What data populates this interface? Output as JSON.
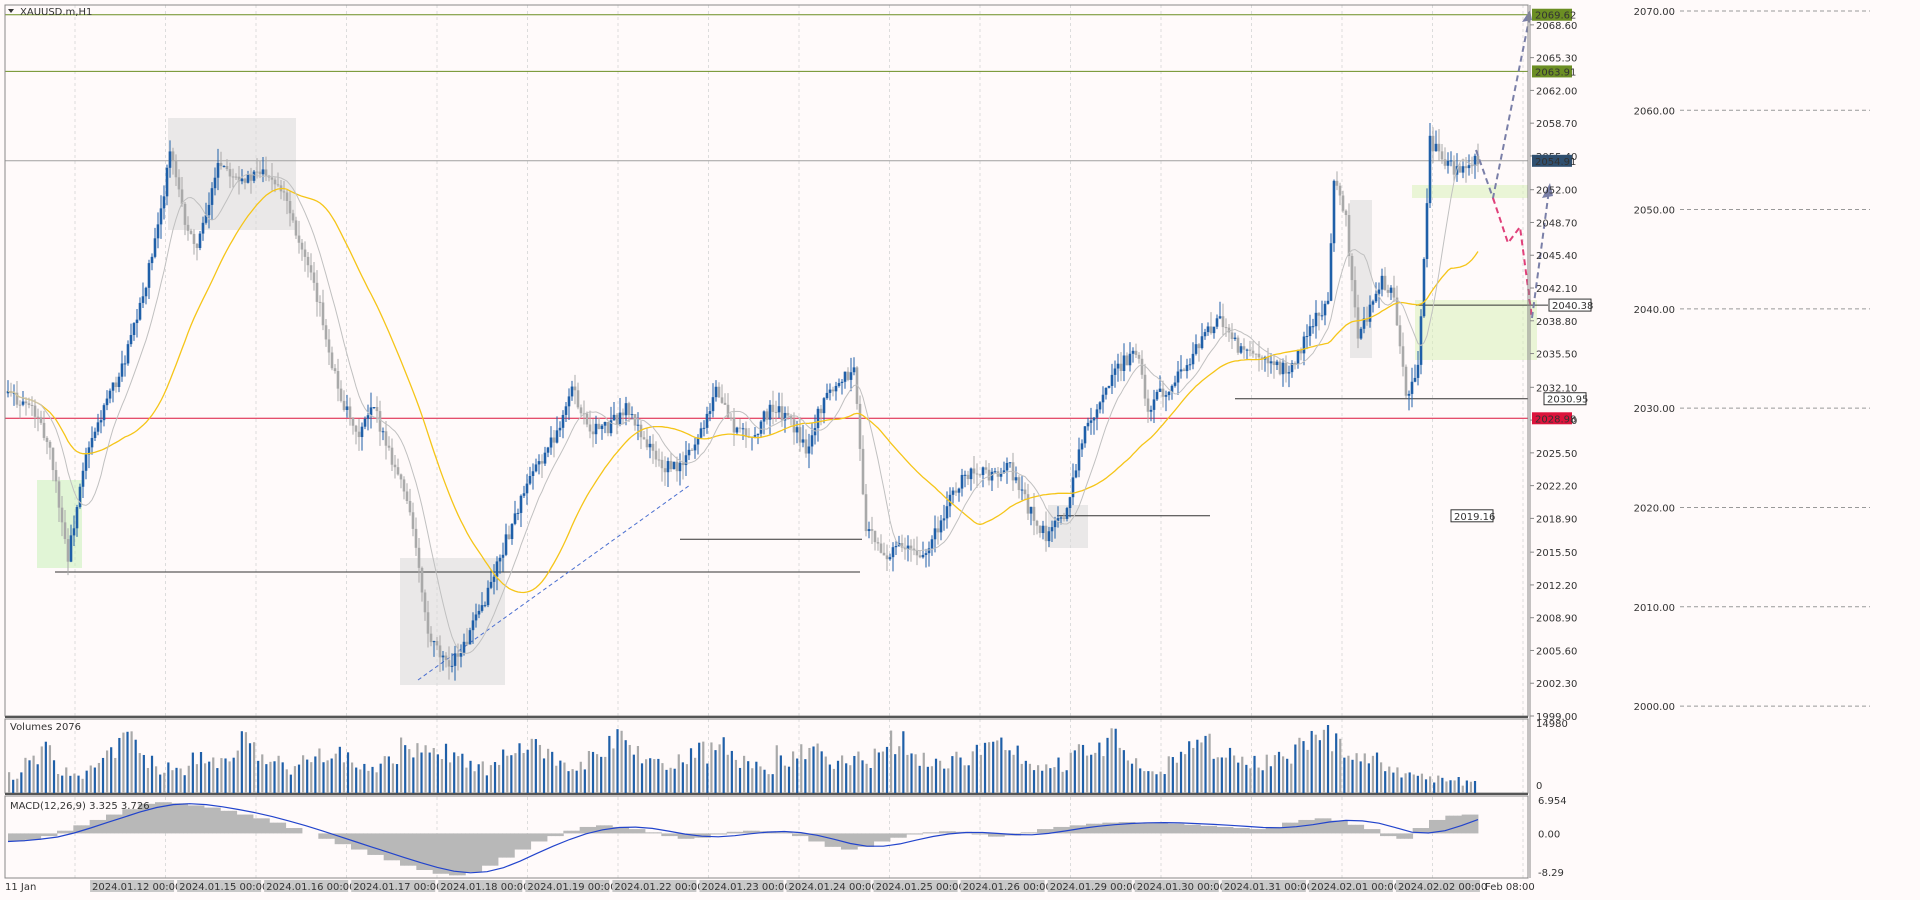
{
  "symbol_label": "XAUUSD.m,H1",
  "volume_label": "Volumes 2076",
  "macd_label": "MACD(12,26,9) 3.325 3.726",
  "colors": {
    "background": "#fffafa",
    "bull_candle": "#1f5fa8",
    "bear_candle": "#a9a9a9",
    "ma_slow": "#f5c518",
    "ma_fast": "#c0c0c0",
    "resistance_line": "#6b8e23",
    "support_line": "#dc143c",
    "projection_up": "#7a7fa8",
    "projection_down": "#e0407a",
    "macd_signal": "#2244cc"
  },
  "chart_data": {
    "type": "candlestick",
    "price_axis_ticks": [
      "2068.60",
      "2065.30",
      "2062.00",
      "2058.70",
      "2055.40",
      "2052.00",
      "2048.70",
      "2045.40",
      "2042.10",
      "2038.80",
      "2035.50",
      "2032.10",
      "2028.80",
      "2025.50",
      "2022.20",
      "2018.90",
      "2015.50",
      "2012.20",
      "2008.90",
      "2005.60",
      "2002.30",
      "1999.00"
    ],
    "ylim": [
      1999.0,
      2070.6
    ],
    "round_levels": [
      "2070.00",
      "2060.00",
      "2050.00",
      "2040.00",
      "2030.00",
      "2020.00",
      "2010.00",
      "2000.00"
    ],
    "level_tags": [
      {
        "label": "2069.62",
        "price": 2069.62,
        "color": "#6b8e23"
      },
      {
        "label": "2063.91",
        "price": 2063.91,
        "color": "#6b8e23"
      },
      {
        "label": "2054.91",
        "price": 2054.91,
        "color": "#2f4f6f"
      },
      {
        "label": "2028.98",
        "price": 2028.98,
        "color": "#dc143c"
      }
    ],
    "annotations": [
      {
        "label": "2040.38",
        "price": 2040.38
      },
      {
        "label": "2030.95",
        "price": 2030.95
      },
      {
        "label": "2019.16",
        "price": 2019.16
      }
    ],
    "time_labels": [
      "11 Jan",
      "2024.01.12 00:00",
      "2024.01.15 00:00",
      "2024.01.16 00:00",
      "2024.01.17 00:00",
      "2024.01.18 00:00",
      "2024.01.19 00:00",
      "2024.01.22 00:00",
      "2024.01.23 00:00",
      "2024.01.24 00:00",
      "2024.01.25 00:00",
      "2024.01.26 00:00",
      "2024.01.29 00:00",
      "2024.01.30 00:00",
      "2024.01.31 00:00",
      "2024.02.01 00:00",
      "2024.02.02 00:00",
      "Feb 08:00"
    ],
    "volume_axis": [
      "14980",
      "0"
    ],
    "macd_axis": [
      "6.954",
      "0.00",
      "-8.29"
    ],
    "price_path": [
      [
        0,
        2031.5
      ],
      [
        8,
        2030
      ],
      [
        14,
        2026
      ],
      [
        20,
        2015
      ],
      [
        26,
        2025
      ],
      [
        32,
        2030
      ],
      [
        38,
        2034
      ],
      [
        44,
        2040
      ],
      [
        50,
        2048
      ],
      [
        54,
        2056
      ],
      [
        58,
        2050
      ],
      [
        62,
        2046
      ],
      [
        66,
        2049
      ],
      [
        70,
        2055
      ],
      [
        74,
        2054
      ],
      [
        80,
        2053
      ],
      [
        86,
        2054
      ],
      [
        92,
        2052
      ],
      [
        98,
        2046
      ],
      [
        104,
        2040
      ],
      [
        110,
        2032
      ],
      [
        116,
        2027
      ],
      [
        122,
        2030
      ],
      [
        128,
        2025
      ],
      [
        134,
        2020
      ],
      [
        140,
        2007
      ],
      [
        146,
        2004
      ],
      [
        152,
        2006
      ],
      [
        158,
        2010
      ],
      [
        164,
        2015
      ],
      [
        170,
        2020
      ],
      [
        176,
        2024
      ],
      [
        182,
        2027
      ],
      [
        188,
        2032
      ],
      [
        194,
        2028
      ],
      [
        200,
        2028
      ],
      [
        206,
        2030
      ],
      [
        212,
        2027
      ],
      [
        218,
        2024
      ],
      [
        224,
        2024
      ],
      [
        230,
        2027
      ],
      [
        236,
        2032
      ],
      [
        242,
        2028
      ],
      [
        248,
        2027
      ],
      [
        254,
        2030
      ],
      [
        260,
        2029
      ],
      [
        266,
        2026
      ],
      [
        272,
        2031
      ],
      [
        278,
        2033
      ],
      [
        282,
        2034
      ],
      [
        286,
        2018
      ],
      [
        292,
        2015
      ],
      [
        298,
        2016
      ],
      [
        304,
        2015
      ],
      [
        310,
        2018
      ],
      [
        316,
        2022
      ],
      [
        322,
        2024
      ],
      [
        328,
        2023
      ],
      [
        334,
        2024
      ],
      [
        340,
        2020
      ],
      [
        346,
        2017
      ],
      [
        352,
        2019
      ],
      [
        358,
        2027
      ],
      [
        364,
        2031
      ],
      [
        370,
        2034
      ],
      [
        376,
        2036
      ],
      [
        380,
        2030
      ],
      [
        386,
        2032
      ],
      [
        392,
        2034
      ],
      [
        398,
        2037
      ],
      [
        404,
        2039
      ],
      [
        410,
        2036
      ],
      [
        416,
        2035
      ],
      [
        422,
        2034
      ],
      [
        428,
        2034
      ],
      [
        434,
        2038
      ],
      [
        440,
        2041
      ],
      [
        442,
        2053
      ],
      [
        446,
        2049
      ],
      [
        450,
        2037
      ],
      [
        454,
        2040
      ],
      [
        458,
        2043
      ],
      [
        462,
        2041
      ],
      [
        466,
        2031
      ],
      [
        470,
        2034
      ],
      [
        474,
        2057
      ],
      [
        478,
        2055
      ],
      [
        482,
        2054
      ],
      [
        486,
        2054
      ],
      [
        490,
        2055
      ]
    ],
    "volume_values": [
      20,
      35,
      50,
      28,
      22,
      40,
      55,
      60,
      42,
      30,
      25,
      45,
      38,
      50,
      62,
      48,
      35,
      30,
      40,
      52,
      45,
      38,
      30,
      42,
      55,
      60,
      48,
      40,
      35,
      30,
      45,
      50,
      58,
      42,
      36,
      40,
      55,
      62,
      48,
      38,
      30,
      42,
      50,
      55,
      40,
      35,
      30,
      45,
      52,
      48,
      40,
      38,
      42,
      55,
      60,
      46,
      38,
      35,
      40,
      50,
      58,
      45,
      38,
      30,
      35,
      48,
      56,
      62,
      44,
      36,
      30,
      40,
      52,
      58,
      46,
      38,
      35,
      42,
      50,
      60,
      70,
      58,
      45,
      38,
      30,
      25,
      20,
      18,
      15,
      12
    ],
    "macd_values": [
      -1.5,
      -1.2,
      -0.5,
      0.5,
      1.5,
      2.5,
      3.5,
      4.5,
      5.5,
      5.8,
      5.6,
      5.2,
      4.8,
      4.2,
      3.5,
      2.8,
      2.0,
      1.0,
      0.0,
      -1.0,
      -2.0,
      -3.0,
      -4.0,
      -5.0,
      -6.0,
      -6.8,
      -7.5,
      -7.8,
      -7.2,
      -6.0,
      -4.5,
      -3.0,
      -1.5,
      -0.5,
      0.5,
      1.2,
      1.5,
      1.2,
      0.8,
      0.2,
      -0.5,
      -1.0,
      -0.8,
      -0.2,
      0.3,
      0.5,
      0.4,
      0.2,
      -0.5,
      -1.5,
      -2.5,
      -3.0,
      -2.5,
      -1.5,
      -0.8,
      -0.2,
      0.2,
      0.4,
      0.3,
      -0.2,
      -0.6,
      -0.4,
      0.2,
      0.8,
      1.2,
      1.5,
      1.8,
      2.0,
      2.1,
      2.0,
      1.9,
      1.8,
      1.6,
      1.4,
      1.2,
      1.0,
      0.8,
      1.2,
      2.0,
      2.5,
      2.8,
      2.4,
      1.6,
      0.8,
      -0.5,
      -1.0,
      1.0,
      2.5,
      3.3,
      3.5
    ]
  }
}
